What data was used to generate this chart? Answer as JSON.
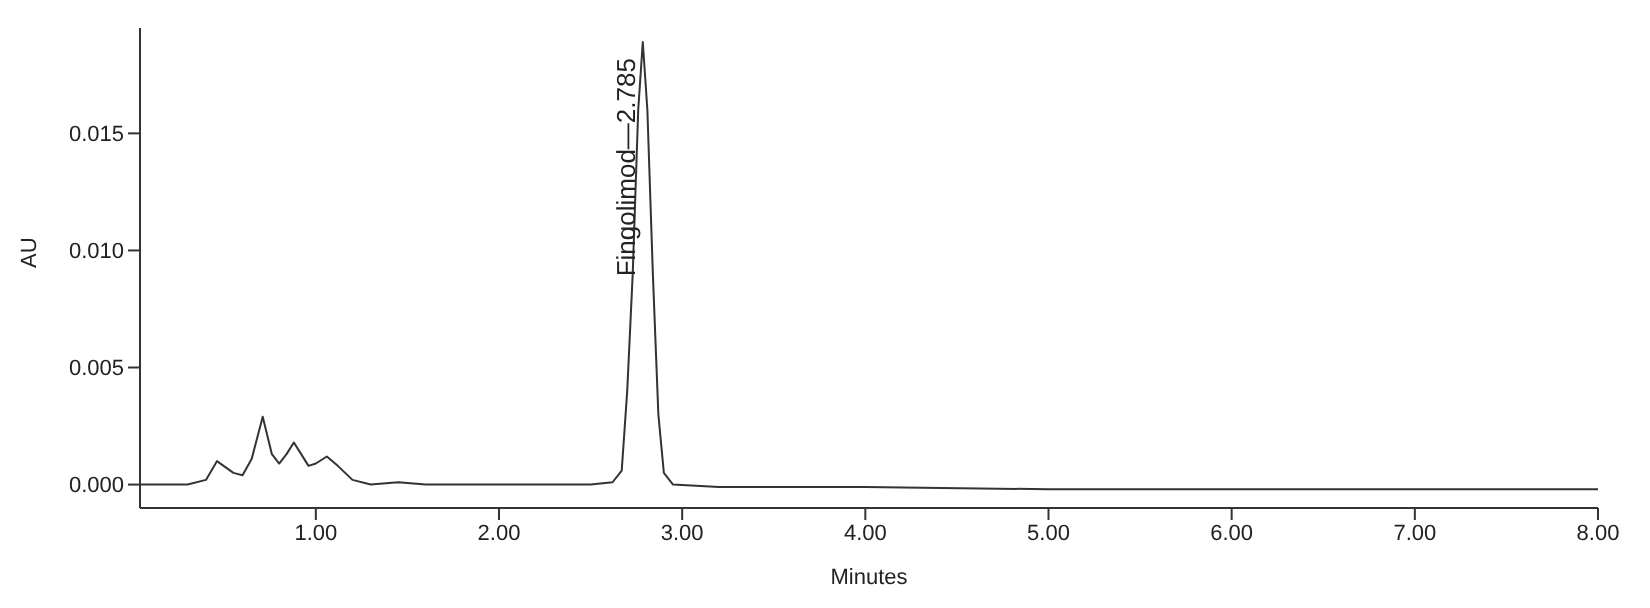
{
  "chart_data": {
    "type": "line",
    "xlabel": "Minutes",
    "ylabel": "AU",
    "series": [
      {
        "color": "#333333",
        "x": [
          0.04,
          0.3,
          0.4,
          0.46,
          0.55,
          0.6,
          0.65,
          0.71,
          0.76,
          0.8,
          0.84,
          0.88,
          0.92,
          0.96,
          1.0,
          1.06,
          1.12,
          1.2,
          1.3,
          1.45,
          1.6,
          2.0,
          2.5,
          2.62,
          2.67,
          2.7,
          2.73,
          2.76,
          2.785,
          2.81,
          2.84,
          2.87,
          2.9,
          2.95,
          3.2,
          4.0,
          5.0,
          6.0,
          7.0,
          8.0
        ],
        "values": [
          0.0,
          0.0,
          0.0002,
          0.001,
          0.0005,
          0.0004,
          0.0011,
          0.0029,
          0.0013,
          0.0009,
          0.0013,
          0.0018,
          0.0013,
          0.0008,
          0.0009,
          0.0012,
          0.0008,
          0.0002,
          0.0,
          0.0001,
          0.0,
          0.0,
          0.0,
          0.0001,
          0.0006,
          0.004,
          0.009,
          0.016,
          0.0189,
          0.016,
          0.009,
          0.003,
          0.0005,
          0.0,
          -0.0001,
          -0.0001,
          -0.0002,
          -0.0002,
          -0.0002,
          -0.0002
        ]
      }
    ],
    "xlim": [
      0.04,
      8.0
    ],
    "xticks": [
      {
        "value": 1,
        "label": "1.00"
      },
      {
        "value": 2,
        "label": "2.00"
      },
      {
        "value": 3,
        "label": "3.00"
      },
      {
        "value": 4,
        "label": "4.00"
      },
      {
        "value": 5,
        "label": "5.00"
      },
      {
        "value": 6,
        "label": "6.00"
      },
      {
        "value": 7,
        "label": "7.00"
      },
      {
        "value": 8,
        "label": "8.00"
      }
    ],
    "ylim": [
      -0.001,
      0.0195
    ],
    "yticks": [
      {
        "value": 0,
        "label": "0.000"
      },
      {
        "value": 0.005,
        "label": "0.005"
      },
      {
        "value": 0.01,
        "label": "0.010"
      },
      {
        "value": 0.015,
        "label": "0.015"
      }
    ],
    "annotations": [
      {
        "text": "Fingolimod—2.785",
        "x": 2.785,
        "y": 0.0189
      }
    ],
    "marker": "none",
    "line_style": "solid",
    "grid": false,
    "legend": false
  }
}
